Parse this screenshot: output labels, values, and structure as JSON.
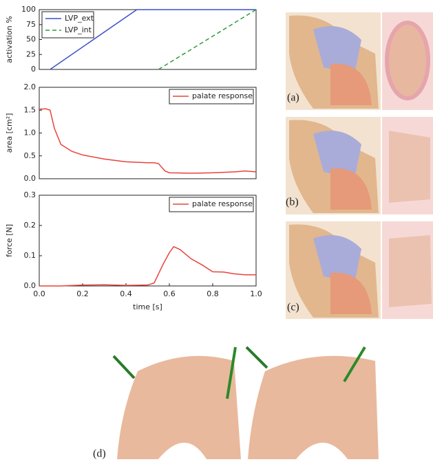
{
  "chart_data": [
    {
      "type": "line",
      "ylabel": "activation %",
      "xlim": [
        0,
        1
      ],
      "ylim": [
        0,
        100
      ],
      "yticks": [
        0,
        25,
        50,
        75,
        100
      ],
      "legend": "upper left",
      "series": [
        {
          "name": "LVP_ext",
          "color": "#3a4fc8",
          "style": "solid",
          "x": [
            0.05,
            0.45,
            1.0
          ],
          "values": [
            0,
            100,
            100
          ]
        },
        {
          "name": "LVP_int",
          "color": "#2e9a3a",
          "style": "dashed",
          "x": [
            0.55,
            1.0
          ],
          "values": [
            0,
            100
          ]
        }
      ]
    },
    {
      "type": "line",
      "ylabel": "area [cm²]",
      "xlim": [
        0,
        1
      ],
      "ylim": [
        0,
        2
      ],
      "yticks": [
        {
          "value": 0,
          "label": "0.0"
        },
        0.5,
        {
          "value": 1,
          "label": "1.0"
        },
        1.5,
        {
          "value": 2,
          "label": "2.0"
        }
      ],
      "legend": "upper right",
      "series": [
        {
          "name": "palate response",
          "color": "#e8423a",
          "style": "solid",
          "x": [
            0,
            0.03,
            0.05,
            0.07,
            0.1,
            0.15,
            0.2,
            0.3,
            0.4,
            0.5,
            0.53,
            0.55,
            0.58,
            0.6,
            0.7,
            0.8,
            0.9,
            0.95,
            1.0
          ],
          "values": [
            1.52,
            1.53,
            1.5,
            1.1,
            0.75,
            0.6,
            0.52,
            0.43,
            0.37,
            0.35,
            0.35,
            0.33,
            0.17,
            0.13,
            0.12,
            0.13,
            0.15,
            0.17,
            0.15
          ]
        }
      ]
    },
    {
      "type": "line",
      "ylabel": "force [N]",
      "xlabel": "time [s]",
      "xlim": [
        0,
        1
      ],
      "ylim": [
        0,
        0.3
      ],
      "xticks": [
        {
          "value": 0,
          "label": "0.0"
        },
        0.2,
        0.4,
        0.6,
        0.8,
        {
          "value": 1,
          "label": "1.0"
        }
      ],
      "yticks": [
        {
          "value": 0,
          "label": "0.0"
        },
        0.1,
        0.2,
        0.3
      ],
      "legend": "upper right",
      "series": [
        {
          "name": "palate response",
          "color": "#e8423a",
          "style": "solid",
          "x": [
            0,
            0.1,
            0.2,
            0.3,
            0.4,
            0.5,
            0.53,
            0.57,
            0.6,
            0.62,
            0.65,
            0.7,
            0.75,
            0.8,
            0.85,
            0.9,
            0.95,
            1.0
          ],
          "values": [
            0,
            0,
            0.003,
            0.004,
            0.002,
            0.003,
            0.01,
            0.07,
            0.11,
            0.13,
            0.12,
            0.09,
            0.07,
            0.047,
            0.046,
            0.04,
            0.037,
            0.037
          ]
        }
      ]
    }
  ],
  "panels": [
    "(a)",
    "(b)",
    "(c)",
    "(d)"
  ]
}
